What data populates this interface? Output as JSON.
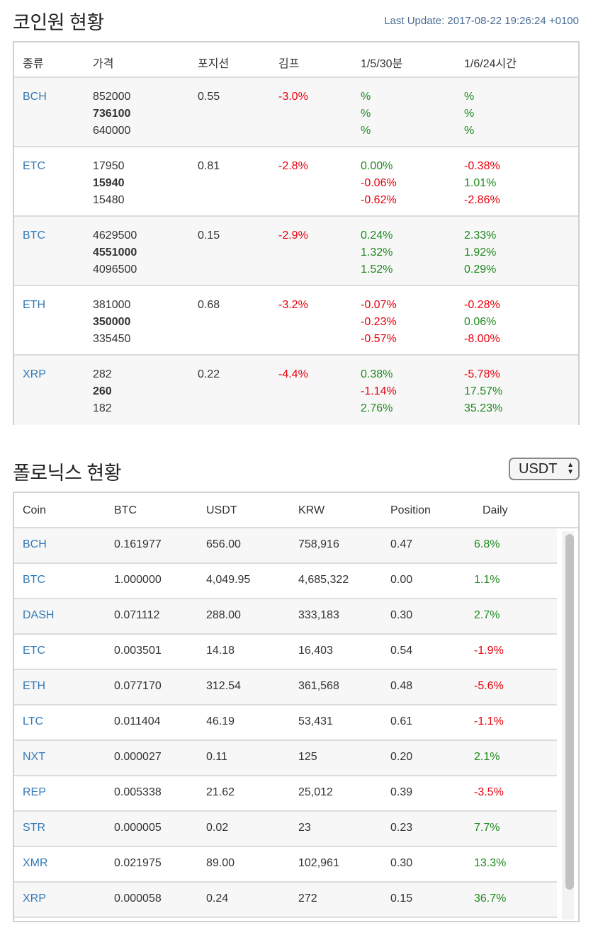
{
  "coinone": {
    "title": "코인원 현황",
    "last_update": "Last Update: 2017-08-22 19:26:24 +0100",
    "headers": [
      "종류",
      "가격",
      "포지션",
      "김프",
      "1/5/30분",
      "1/6/24시간"
    ],
    "rows": [
      {
        "coin": "BCH",
        "prices": [
          "852000",
          "736100",
          "640000"
        ],
        "position": "0.55",
        "kimp": "-3.0%",
        "kimp_sign": "neg",
        "min": [
          {
            "v": "%",
            "s": "pos"
          },
          {
            "v": "%",
            "s": "pos"
          },
          {
            "v": "%",
            "s": "pos"
          }
        ],
        "hour": [
          {
            "v": "%",
            "s": "pos"
          },
          {
            "v": "%",
            "s": "pos"
          },
          {
            "v": "%",
            "s": "pos"
          }
        ]
      },
      {
        "coin": "ETC",
        "prices": [
          "17950",
          "15940",
          "15480"
        ],
        "position": "0.81",
        "kimp": "-2.8%",
        "kimp_sign": "neg",
        "min": [
          {
            "v": "0.00%",
            "s": "pos"
          },
          {
            "v": "-0.06%",
            "s": "neg"
          },
          {
            "v": "-0.62%",
            "s": "neg"
          }
        ],
        "hour": [
          {
            "v": "-0.38%",
            "s": "neg"
          },
          {
            "v": "1.01%",
            "s": "pos"
          },
          {
            "v": "-2.86%",
            "s": "neg"
          }
        ]
      },
      {
        "coin": "BTC",
        "prices": [
          "4629500",
          "4551000",
          "4096500"
        ],
        "position": "0.15",
        "kimp": "-2.9%",
        "kimp_sign": "neg",
        "min": [
          {
            "v": "0.24%",
            "s": "pos"
          },
          {
            "v": "1.32%",
            "s": "pos"
          },
          {
            "v": "1.52%",
            "s": "pos"
          }
        ],
        "hour": [
          {
            "v": "2.33%",
            "s": "pos"
          },
          {
            "v": "1.92%",
            "s": "pos"
          },
          {
            "v": "0.29%",
            "s": "pos"
          }
        ]
      },
      {
        "coin": "ETH",
        "prices": [
          "381000",
          "350000",
          "335450"
        ],
        "position": "0.68",
        "kimp": "-3.2%",
        "kimp_sign": "neg",
        "min": [
          {
            "v": "-0.07%",
            "s": "neg"
          },
          {
            "v": "-0.23%",
            "s": "neg"
          },
          {
            "v": "-0.57%",
            "s": "neg"
          }
        ],
        "hour": [
          {
            "v": "-0.28%",
            "s": "neg"
          },
          {
            "v": "0.06%",
            "s": "pos"
          },
          {
            "v": "-8.00%",
            "s": "neg"
          }
        ]
      },
      {
        "coin": "XRP",
        "prices": [
          "282",
          "260",
          "182"
        ],
        "position": "0.22",
        "kimp": "-4.4%",
        "kimp_sign": "neg",
        "min": [
          {
            "v": "0.38%",
            "s": "pos"
          },
          {
            "v": "-1.14%",
            "s": "neg"
          },
          {
            "v": "2.76%",
            "s": "pos"
          }
        ],
        "hour": [
          {
            "v": "-5.78%",
            "s": "neg"
          },
          {
            "v": "17.57%",
            "s": "pos"
          },
          {
            "v": "35.23%",
            "s": "pos"
          }
        ]
      }
    ]
  },
  "poloniex": {
    "title": "폴로닉스 현황",
    "currency_select": "USDT",
    "headers": [
      "Coin",
      "BTC",
      "USDT",
      "KRW",
      "Position",
      "Daily"
    ],
    "rows": [
      {
        "coin": "BCH",
        "btc": "0.161977",
        "usdt": "656.00",
        "krw": "758,916",
        "position": "0.47",
        "daily": "6.8%",
        "s": "pos"
      },
      {
        "coin": "BTC",
        "btc": "1.000000",
        "usdt": "4,049.95",
        "krw": "4,685,322",
        "position": "0.00",
        "daily": "1.1%",
        "s": "pos"
      },
      {
        "coin": "DASH",
        "btc": "0.071112",
        "usdt": "288.00",
        "krw": "333,183",
        "position": "0.30",
        "daily": "2.7%",
        "s": "pos"
      },
      {
        "coin": "ETC",
        "btc": "0.003501",
        "usdt": "14.18",
        "krw": "16,403",
        "position": "0.54",
        "daily": "-1.9%",
        "s": "neg"
      },
      {
        "coin": "ETH",
        "btc": "0.077170",
        "usdt": "312.54",
        "krw": "361,568",
        "position": "0.48",
        "daily": "-5.6%",
        "s": "neg"
      },
      {
        "coin": "LTC",
        "btc": "0.011404",
        "usdt": "46.19",
        "krw": "53,431",
        "position": "0.61",
        "daily": "-1.1%",
        "s": "neg"
      },
      {
        "coin": "NXT",
        "btc": "0.000027",
        "usdt": "0.11",
        "krw": "125",
        "position": "0.20",
        "daily": "2.1%",
        "s": "pos"
      },
      {
        "coin": "REP",
        "btc": "0.005338",
        "usdt": "21.62",
        "krw": "25,012",
        "position": "0.39",
        "daily": "-3.5%",
        "s": "neg"
      },
      {
        "coin": "STR",
        "btc": "0.000005",
        "usdt": "0.02",
        "krw": "23",
        "position": "0.23",
        "daily": "7.7%",
        "s": "pos"
      },
      {
        "coin": "XMR",
        "btc": "0.021975",
        "usdt": "89.00",
        "krw": "102,961",
        "position": "0.30",
        "daily": "13.3%",
        "s": "pos"
      },
      {
        "coin": "XRP",
        "btc": "0.000058",
        "usdt": "0.24",
        "krw": "272",
        "position": "0.15",
        "daily": "36.7%",
        "s": "pos"
      }
    ]
  },
  "colors": {
    "positive": "#1e8a1e",
    "negative": "#e8000b",
    "link": "#337ab7"
  }
}
